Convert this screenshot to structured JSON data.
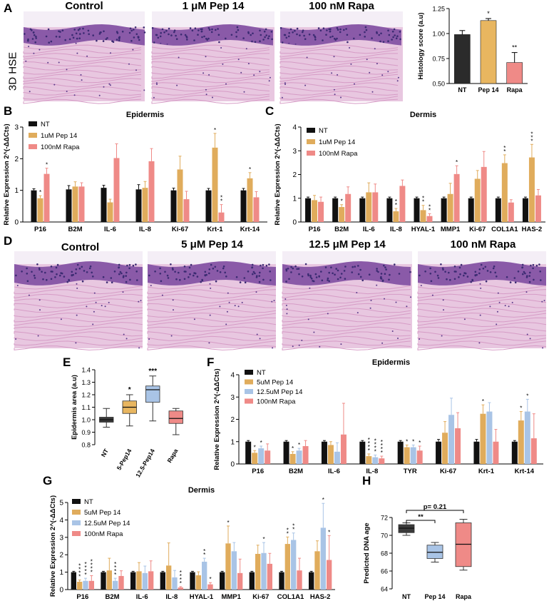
{
  "panels": {
    "A": {
      "label": "A",
      "row_label": "3D  HSE",
      "images": [
        "Control",
        "1 μM Pep 14",
        "100 nM Rapa"
      ],
      "chart_data": {
        "type": "bar",
        "categories": [
          "NT",
          "Pep 14",
          "Rapa"
        ],
        "values": [
          0.99,
          1.13,
          0.71
        ],
        "errors": [
          0.04,
          0.02,
          0.1
        ],
        "sig": [
          "",
          "*",
          "**"
        ],
        "colors": [
          "#2b2b2b",
          "#e8b660",
          "#ef8a87"
        ],
        "ylabel": "Histology score (a.u)",
        "ylim": [
          0.5,
          1.25
        ],
        "yticks": [
          "0.50",
          "0.75",
          "1.00",
          "1.25"
        ]
      }
    },
    "B": {
      "label": "B",
      "chart_data": {
        "type": "bar",
        "title": "Epidermis",
        "ylabel": "Relative Expression 2^(-ΔΔCts)",
        "ylim": [
          0,
          3
        ],
        "yticks": [
          "0",
          "1",
          "2",
          "3"
        ],
        "categories": [
          "P16",
          "B2M",
          "IL-6",
          "IL-8",
          "Ki-67",
          "Krt-1",
          "Krt-14"
        ],
        "series": [
          {
            "name": "NT",
            "color": "#111111",
            "values": [
              1,
              1.03,
              1.08,
              1.03,
              1,
              1,
              1
            ],
            "errors": [
              0.05,
              0.12,
              0.08,
              0.15,
              0.07,
              0.06,
              0.06
            ],
            "sig": [
              "",
              "",
              "",
              "",
              "",
              "",
              ""
            ]
          },
          {
            "name": "1uM Pep 14",
            "color": "#e0ac5c",
            "values": [
              0.75,
              1.12,
              0.62,
              1.08,
              1.66,
              2.35,
              1.38
            ],
            "errors": [
              0.08,
              0.15,
              0.1,
              0.2,
              0.42,
              0.45,
              0.18
            ],
            "sig": [
              "*",
              "",
              "",
              "",
              "",
              "*",
              "*"
            ]
          },
          {
            "name": "100nM Rapa",
            "color": "#ef8a87",
            "values": [
              1.52,
              1.12,
              2.02,
              1.92,
              0.72,
              0.3,
              0.78
            ],
            "errors": [
              0.18,
              0.12,
              0.45,
              0.4,
              0.25,
              0.25,
              0.18
            ],
            "sig": [
              "*",
              "",
              "",
              "",
              "",
              "**",
              ""
            ]
          }
        ]
      }
    },
    "C": {
      "label": "C",
      "chart_data": {
        "type": "bar",
        "title": "Dermis",
        "ylabel": "Relative Expression 2^(-ΔΔCts)",
        "ylim": [
          0,
          4
        ],
        "yticks": [
          "0",
          "1",
          "2",
          "3",
          "4"
        ],
        "categories": [
          "P16",
          "B2M",
          "IL-6",
          "IL-8",
          "HYAL-1",
          "MMP1",
          "Ki-67",
          "COL1A1",
          "HAS-2"
        ],
        "series": [
          {
            "name": "NT",
            "color": "#111111",
            "values": [
              1,
              1,
              1,
              1,
              1,
              1,
              1,
              1,
              1
            ],
            "errors": [
              0.05,
              0.05,
              0.05,
              0.05,
              0.05,
              0.05,
              0.05,
              0.05,
              0.05
            ],
            "sig": [
              "",
              "",
              "",
              "",
              "",
              "",
              "",
              "",
              ""
            ]
          },
          {
            "name": "1uM Pep 14",
            "color": "#e0ac5c",
            "values": [
              0.92,
              0.63,
              1.25,
              0.45,
              0.5,
              1.18,
              1.82,
              2.48,
              2.72
            ],
            "errors": [
              0.2,
              0.1,
              0.4,
              0.12,
              0.2,
              0.45,
              0.35,
              0.35,
              0.55
            ],
            "sig": [
              "",
              "*",
              "",
              "**",
              "**",
              "",
              "",
              "**",
              "***"
            ]
          },
          {
            "name": "100nM Rapa",
            "color": "#ef8a87",
            "values": [
              0.85,
              1.18,
              1.25,
              1.52,
              0.25,
              2.02,
              2.32,
              0.82,
              1.12
            ],
            "errors": [
              0.2,
              0.3,
              0.35,
              0.25,
              0.1,
              0.35,
              0.65,
              0.12,
              0.25
            ],
            "sig": [
              "",
              "",
              "",
              "",
              "**",
              "*",
              "",
              "",
              ""
            ]
          }
        ]
      }
    },
    "D": {
      "label": "D",
      "images": [
        "Control",
        "5 μM Pep 14",
        "12.5 μM Pep 14",
        "100 nM Rapa"
      ]
    },
    "E": {
      "label": "E",
      "chart_data": {
        "type": "box",
        "categories": [
          "NT",
          "5-Pep14",
          "12.5-Pep14",
          "Rapa"
        ],
        "boxes": [
          {
            "min": 0.94,
            "q1": 0.98,
            "median": 1.0,
            "q3": 1.02,
            "max": 1.09,
            "color": "#3a3a3a"
          },
          {
            "min": 0.95,
            "q1": 1.05,
            "median": 1.1,
            "q3": 1.15,
            "max": 1.2,
            "color": "#e8b660"
          },
          {
            "min": 0.99,
            "q1": 1.14,
            "median": 1.24,
            "q3": 1.27,
            "max": 1.35,
            "color": "#a9c4e6"
          },
          {
            "min": 0.88,
            "q1": 0.97,
            "median": 1.01,
            "q3": 1.07,
            "max": 1.09,
            "color": "#ef8a87"
          }
        ],
        "sig": [
          "",
          "*",
          "***",
          ""
        ],
        "ylabel": "Epidermis area (a.u)",
        "ylim": [
          0.8,
          1.4
        ],
        "yticks": [
          "0.8",
          "0.9",
          "1.0",
          "1.1",
          "1.2",
          "1.3",
          "1.4"
        ]
      }
    },
    "F": {
      "label": "F",
      "chart_data": {
        "type": "bar",
        "title": "Epidermis",
        "ylabel": "Relative Expression 2^(-ΔΔCts)",
        "ylim": [
          0,
          4
        ],
        "yticks": [
          "0",
          "1",
          "2",
          "3",
          "4"
        ],
        "categories": [
          "P16",
          "B2M",
          "IL-6",
          "IL-8",
          "TYR",
          "Ki-67",
          "Krt-1",
          "Krt-14"
        ],
        "series": [
          {
            "name": "NT",
            "color": "#111111",
            "values": [
              1,
              1,
              1,
              1,
              1,
              1,
              1,
              1
            ],
            "errors": [
              0.05,
              0.05,
              0.05,
              0.05,
              0.05,
              0.1,
              0.1,
              0.05
            ],
            "sig": [
              "",
              "",
              "",
              "",
              "",
              "",
              "",
              ""
            ]
          },
          {
            "name": "5uM Pep 14",
            "color": "#e0ac5c",
            "values": [
              0.5,
              0.45,
              0.85,
              0.35,
              0.75,
              1.4,
              2.25,
              1.95
            ],
            "errors": [
              0.1,
              0.1,
              0.15,
              0.1,
              0.1,
              0.5,
              0.4,
              0.4
            ],
            "sig": [
              "*",
              "*",
              "",
              "****",
              "*",
              "",
              "*",
              "*"
            ]
          },
          {
            "name": "12.5uM Pep 14",
            "color": "#a9c4e6",
            "values": [
              0.7,
              0.6,
              0.55,
              0.3,
              0.75,
              2.2,
              2.35,
              2.35
            ],
            "errors": [
              0.1,
              0.1,
              0.4,
              0.1,
              0.1,
              0.75,
              0.4,
              0.55
            ],
            "sig": [
              "*",
              "*",
              "",
              "****",
              "*",
              "",
              "",
              "*"
            ]
          },
          {
            "name": "100nM Rapa",
            "color": "#ef8a87",
            "values": [
              0.6,
              0.8,
              1.32,
              0.25,
              0.6,
              1.6,
              1.0,
              1.15
            ],
            "errors": [
              0.3,
              0.25,
              1.4,
              0.1,
              0.2,
              0.7,
              0.55,
              1.1
            ],
            "sig": [
              "",
              "",
              "",
              "****",
              "*",
              "",
              "",
              ""
            ]
          }
        ]
      }
    },
    "G": {
      "label": "G",
      "chart_data": {
        "type": "bar",
        "title": "Dermis",
        "ylabel": "Relative Expression 2^(-ΔΔCts)",
        "ylim": [
          0,
          5
        ],
        "yticks": [
          "0",
          "1",
          "2",
          "3",
          "4",
          "5"
        ],
        "categories": [
          "P16",
          "B2M",
          "IL-6",
          "IL-8",
          "HYAL-1",
          "MMP1",
          "Ki-67",
          "COL1A1",
          "HAS-2"
        ],
        "series": [
          {
            "name": "NT",
            "color": "#111111",
            "values": [
              1,
              1,
              1,
              1,
              1,
              1,
              1,
              1,
              1
            ],
            "errors": [
              0.05,
              0.05,
              0.05,
              0.05,
              0.05,
              0.05,
              0.05,
              0.05,
              0.05
            ],
            "sig": [
              "",
              "",
              "",
              "",
              "",
              "",
              "",
              "",
              ""
            ]
          },
          {
            "name": "5uM Pep 14",
            "color": "#e0ac5c",
            "values": [
              0.45,
              1.1,
              1.05,
              1.38,
              0.82,
              2.65,
              2.05,
              2.62,
              2.2
            ],
            "errors": [
              0.1,
              0.7,
              0.5,
              1.3,
              0.2,
              1.0,
              0.5,
              0.4,
              0.6
            ],
            "sig": [
              "****",
              "",
              "",
              "",
              "",
              "*",
              "",
              "**",
              ""
            ]
          },
          {
            "name": "12.5uM Pep 14",
            "color": "#a9c4e6",
            "values": [
              0.5,
              0.5,
              0.95,
              0.7,
              1.6,
              2.2,
              2.1,
              2.85,
              3.55
            ],
            "errors": [
              0.15,
              0.15,
              0.4,
              0.4,
              0.2,
              0.5,
              0.6,
              0.4,
              1.4
            ],
            "sig": [
              "****",
              "****",
              "",
              "",
              "**",
              "",
              "*",
              "**",
              "*"
            ]
          },
          {
            "name": "100nM Rapa",
            "color": "#ef8a87",
            "values": [
              0.5,
              0.78,
              1.05,
              0.12,
              0.3,
              0.95,
              1.48,
              1.1,
              1.7
            ],
            "errors": [
              0.3,
              0.3,
              0.6,
              0.05,
              0.1,
              0.8,
              0.6,
              0.7,
              1.4
            ],
            "sig": [
              "****",
              "",
              "",
              "****",
              "*",
              "",
              "",
              "",
              "*"
            ]
          }
        ]
      }
    },
    "H": {
      "label": "H",
      "chart_data": {
        "type": "box",
        "categories": [
          "NT",
          "Pep 14",
          "Rapa"
        ],
        "boxes": [
          {
            "min": 70.0,
            "q1": 70.3,
            "median": 70.8,
            "q3": 71.2,
            "max": 71.4,
            "color": "#3a3a3a"
          },
          {
            "min": 67.0,
            "q1": 67.4,
            "median": 68.1,
            "q3": 68.9,
            "max": 69.2,
            "color": "#a9c4e6"
          },
          {
            "min": 66.1,
            "q1": 66.5,
            "median": 69.0,
            "q3": 71.4,
            "max": 71.8,
            "color": "#ef8a87"
          }
        ],
        "ylabel": "Predicted DNA age",
        "ylim": [
          64,
          72
        ],
        "yticks": [
          "64",
          "66",
          "68",
          "70",
          "72"
        ],
        "brackets": [
          {
            "from": 0,
            "to": 1,
            "label": "**"
          },
          {
            "from": 0,
            "to": 2,
            "label": "p= 0.21"
          }
        ]
      }
    }
  }
}
